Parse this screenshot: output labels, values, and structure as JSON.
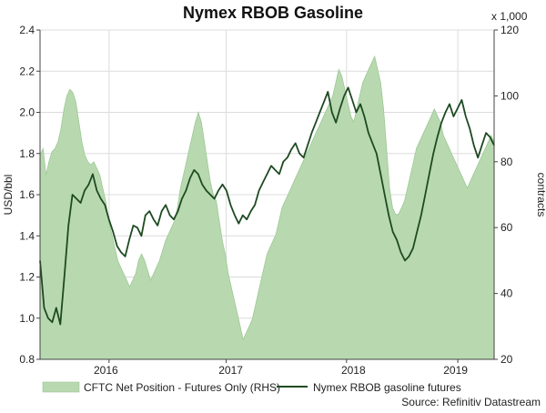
{
  "chart_data": {
    "type": "line",
    "title": "Nymex RBOB Gasoline",
    "ylabel_left": "USD/bbl",
    "ylabel_right": "contracts",
    "right_multiplier": "x 1,000",
    "source": "Source: Refinitiv Datastream",
    "ylim_left": [
      0.8,
      2.4
    ],
    "ylim_right": [
      20,
      120
    ],
    "yticks_left": [
      "0.8",
      "1.0",
      "1.2",
      "1.4",
      "1.6",
      "1.8",
      "2.0",
      "2.2",
      "2.4"
    ],
    "yticks_right": [
      "20",
      "40",
      "60",
      "80",
      "100",
      "120"
    ],
    "xticks": [
      "2016",
      "2017",
      "2018",
      "2019"
    ],
    "grid": true,
    "legend_position": "bottom",
    "series": [
      {
        "name": "CFTC Net Position - Futures Only (RHS)",
        "axis": "right",
        "style": "area",
        "color": "#b8d9b0",
        "values": [
          82,
          84,
          76,
          80,
          83,
          84,
          86,
          90,
          96,
          100,
          102,
          101,
          98,
          92,
          86,
          82,
          80,
          79,
          80,
          78,
          76,
          72,
          68,
          62,
          58,
          54,
          50,
          48,
          46,
          44,
          42,
          44,
          46,
          50,
          52,
          50,
          47,
          44,
          46,
          48,
          50,
          53,
          56,
          58,
          60,
          62,
          66,
          72,
          76,
          80,
          84,
          88,
          92,
          95,
          92,
          86,
          80,
          74,
          70,
          68,
          62,
          56,
          52,
          46,
          42,
          38,
          34,
          30,
          26,
          28,
          30,
          32,
          36,
          40,
          44,
          48,
          52,
          54,
          56,
          58,
          62,
          66,
          68,
          70,
          72,
          74,
          76,
          78,
          80,
          82,
          84,
          86,
          88,
          90,
          92,
          94,
          96,
          98,
          100,
          104,
          108,
          106,
          102,
          98,
          94,
          92,
          96,
          100,
          104,
          106,
          108,
          110,
          112,
          108,
          104,
          96,
          84,
          72,
          66,
          64,
          64,
          66,
          68,
          72,
          76,
          80,
          84,
          86,
          88,
          90,
          92,
          94,
          96,
          94,
          92,
          88,
          86,
          84,
          82,
          80,
          78,
          76,
          74,
          72,
          74,
          76,
          78,
          80,
          82,
          84,
          86,
          88,
          86
        ]
      },
      {
        "name": "Nymex RBOB gasoline futures",
        "axis": "left",
        "style": "line",
        "color": "#1e4a22",
        "values": [
          1.28,
          1.05,
          1.0,
          0.98,
          1.05,
          0.97,
          1.2,
          1.45,
          1.6,
          1.58,
          1.56,
          1.62,
          1.65,
          1.7,
          1.62,
          1.58,
          1.55,
          1.48,
          1.42,
          1.35,
          1.32,
          1.3,
          1.38,
          1.45,
          1.44,
          1.4,
          1.5,
          1.52,
          1.48,
          1.45,
          1.52,
          1.55,
          1.5,
          1.48,
          1.52,
          1.58,
          1.62,
          1.68,
          1.72,
          1.7,
          1.65,
          1.62,
          1.6,
          1.58,
          1.62,
          1.65,
          1.62,
          1.55,
          1.5,
          1.46,
          1.5,
          1.48,
          1.52,
          1.55,
          1.62,
          1.66,
          1.7,
          1.74,
          1.72,
          1.7,
          1.76,
          1.78,
          1.82,
          1.85,
          1.8,
          1.78,
          1.84,
          1.9,
          1.95,
          2.0,
          2.05,
          2.1,
          2.0,
          1.95,
          2.02,
          2.08,
          2.12,
          2.06,
          2.0,
          2.04,
          1.98,
          1.9,
          1.85,
          1.8,
          1.7,
          1.6,
          1.5,
          1.42,
          1.38,
          1.32,
          1.28,
          1.3,
          1.34,
          1.42,
          1.5,
          1.6,
          1.7,
          1.8,
          1.88,
          1.95,
          2.0,
          2.04,
          1.98,
          2.02,
          2.06,
          1.98,
          1.92,
          1.84,
          1.78,
          1.84,
          1.9,
          1.88,
          1.84
        ]
      }
    ]
  }
}
